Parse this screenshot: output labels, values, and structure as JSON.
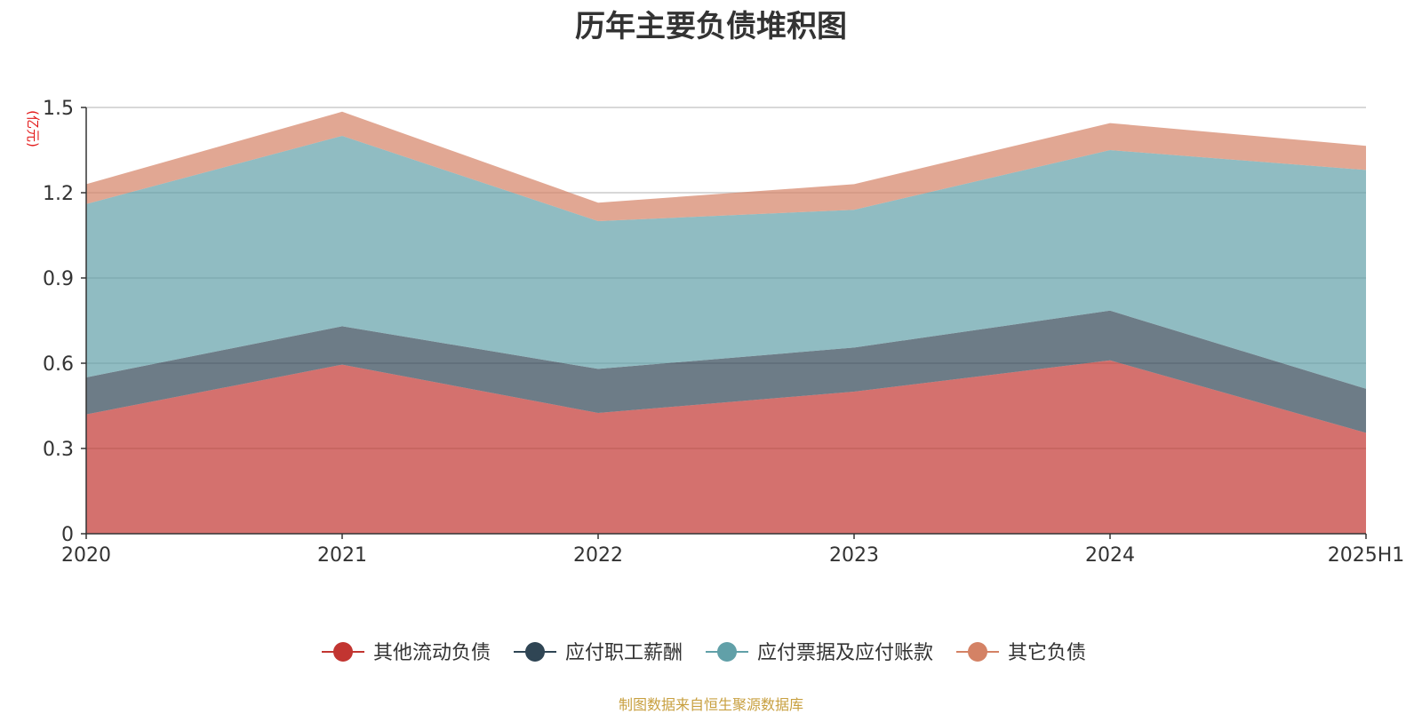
{
  "chart_data": {
    "type": "area",
    "stacked": true,
    "title": "历年主要负债堆积图",
    "unit_label": "(亿元)",
    "categories": [
      "2020",
      "2021",
      "2022",
      "2023",
      "2024",
      "2025H1"
    ],
    "y_ticks": [
      "0",
      "0.3",
      "0.6",
      "0.9",
      "1.2",
      "1.5"
    ],
    "ylim": [
      0,
      1.5
    ],
    "grid": true,
    "legend_position": "bottom",
    "series": [
      {
        "name": "其他流动负债",
        "color": "#c23531",
        "values": [
          0.42,
          0.595,
          0.425,
          0.5,
          0.61,
          0.355
        ]
      },
      {
        "name": "应付职工薪酬",
        "color": "#2f4554",
        "values": [
          0.13,
          0.135,
          0.155,
          0.155,
          0.175,
          0.155
        ]
      },
      {
        "name": "应付票据及应付账款",
        "color": "#61a0a8",
        "values": [
          0.61,
          0.67,
          0.52,
          0.485,
          0.565,
          0.77
        ]
      },
      {
        "name": "其它负债",
        "color": "#d48265",
        "values": [
          0.07,
          0.085,
          0.065,
          0.09,
          0.095,
          0.085
        ]
      }
    ]
  },
  "footer": {
    "source": "制图数据来自恒生聚源数据库",
    "color": "#c8a040"
  },
  "unit_color": "#e31a1a"
}
